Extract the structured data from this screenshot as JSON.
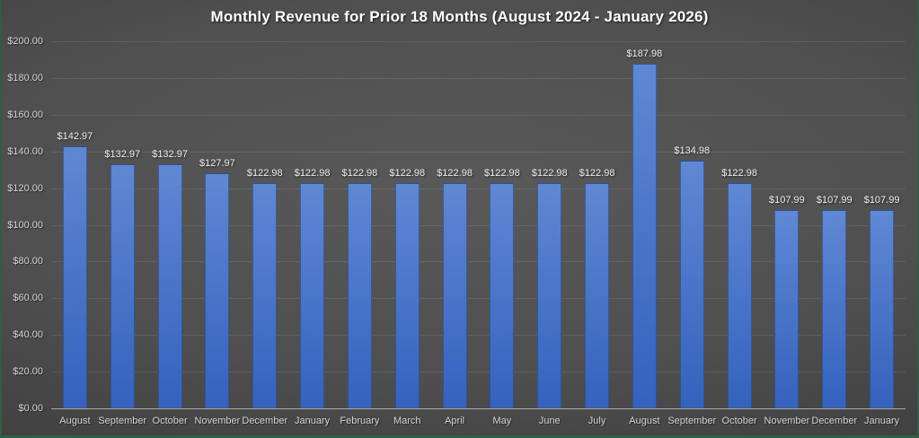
{
  "frame": {
    "border_color": "#2e5f46"
  },
  "chart": {
    "title": "Monthly Revenue for Prior 18 Months (August 2024 - January 2026)",
    "colors": {
      "background_center": "#595959",
      "background_edge": "#303030",
      "bar_top": "#5f88d4",
      "bar_bottom": "#3462bd",
      "bar_border": "#2b4880",
      "gridline": "rgba(255,255,255,0.10)",
      "axis_line": "#a9a9a9",
      "title_text": "#ffffff",
      "tick_text": "#d6d6d6",
      "value_label_text": "#efefef"
    }
  },
  "chart_data": {
    "type": "bar",
    "title": "Monthly Revenue for Prior 18 Months (August 2024 - January 2026)",
    "categories": [
      "August",
      "September",
      "October",
      "November",
      "December",
      "January",
      "February",
      "March",
      "April",
      "May",
      "June",
      "July",
      "August",
      "September",
      "October",
      "November",
      "December",
      "January"
    ],
    "values": [
      142.97,
      132.97,
      132.97,
      127.97,
      122.98,
      122.98,
      122.98,
      122.98,
      122.98,
      122.98,
      122.98,
      122.98,
      187.98,
      134.98,
      122.98,
      107.99,
      107.99,
      107.99
    ],
    "value_labels": [
      "$142.97",
      "$132.97",
      "$132.97",
      "$127.97",
      "$122.98",
      "$122.98",
      "$122.98",
      "$122.98",
      "$122.98",
      "$122.98",
      "$122.98",
      "$122.98",
      "$187.98",
      "$134.98",
      "$122.98",
      "$107.99",
      "$107.99",
      "$107.99"
    ],
    "xlabel": "",
    "ylabel": "",
    "ylim": [
      0,
      200
    ],
    "ytick_step": 20,
    "ytick_labels": [
      "$0.00",
      "$20.00",
      "$40.00",
      "$60.00",
      "$80.00",
      "$100.00",
      "$120.00",
      "$140.00",
      "$160.00",
      "$180.00",
      "$200.00"
    ],
    "grid": true,
    "legend": "none"
  }
}
